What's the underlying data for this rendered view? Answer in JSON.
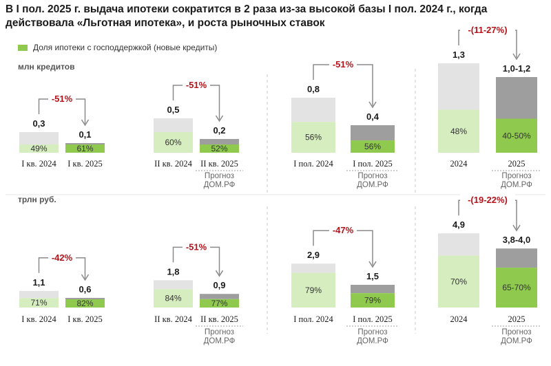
{
  "title": "В I пол. 2025 г. выдача ипотеки сократится в 2 раза из-за высокой базы I пол. 2024 г., когда действовала «Льготная ипотека», и роста рыночных ставок",
  "legend_label": "Доля ипотеки с господдержкой (новые кредиты)",
  "forecast_note": [
    "Прогноз",
    "ДОМ.РФ"
  ],
  "colors": {
    "total": "#e3e3e3",
    "total_forecast": "#9e9e9e",
    "share_light": "#d6edbf",
    "share_dark": "#8fca4f",
    "change": "#b3141b"
  },
  "chart_data": [
    {
      "unit": "млн кредитов",
      "type": "bar",
      "panels": [
        {
          "categories": [
            "I кв. 2024",
            "I кв. 2025"
          ],
          "values": [
            0.3,
            0.1
          ],
          "value_labels": [
            "0,3",
            "0,1"
          ],
          "share_values": [
            49,
            61
          ],
          "share_labels": [
            "49%",
            "61%"
          ],
          "change": "-51%",
          "forecast": false,
          "scale_max": 1.4
        },
        {
          "categories": [
            "II кв. 2024",
            "II кв. 2025"
          ],
          "values": [
            0.5,
            0.2
          ],
          "value_labels": [
            "0,5",
            "0,2"
          ],
          "share_values": [
            60,
            52
          ],
          "share_labels": [
            "60%",
            "52%"
          ],
          "change": "-51%",
          "forecast": true,
          "scale_max": 1.4
        },
        {
          "categories": [
            "I пол. 2024",
            "I пол. 2025"
          ],
          "values": [
            0.8,
            0.4
          ],
          "value_labels": [
            "0,8",
            "0,4"
          ],
          "share_values": [
            56,
            56
          ],
          "share_labels": [
            "56%",
            "56%"
          ],
          "change": "-51%",
          "forecast": true,
          "scale_max": 1.4
        },
        {
          "categories": [
            "2024",
            "2025"
          ],
          "values": [
            1.3,
            1.1
          ],
          "value_labels": [
            "1,3",
            "1,0-1,2"
          ],
          "share_values": [
            48,
            45
          ],
          "share_labels": [
            "48%",
            "40-50%"
          ],
          "change": "-(11-27%)",
          "forecast": true,
          "scale_max": 1.4
        }
      ]
    },
    {
      "unit": "трлн руб.",
      "type": "bar",
      "panels": [
        {
          "categories": [
            "I кв. 2024",
            "I кв. 2025"
          ],
          "values": [
            1.1,
            0.6
          ],
          "value_labels": [
            "1,1",
            "0,6"
          ],
          "share_values": [
            71,
            82
          ],
          "share_labels": [
            "71%",
            "82%"
          ],
          "change": "-42%",
          "forecast": false,
          "scale_max": 5.5
        },
        {
          "categories": [
            "II кв. 2024",
            "II кв. 2025"
          ],
          "values": [
            1.8,
            0.9
          ],
          "value_labels": [
            "1,8",
            "0,9"
          ],
          "share_values": [
            84,
            77
          ],
          "share_labels": [
            "84%",
            "77%"
          ],
          "change": "-51%",
          "forecast": true,
          "scale_max": 5.5
        },
        {
          "categories": [
            "I пол. 2024",
            "I пол. 2025"
          ],
          "values": [
            2.9,
            1.5
          ],
          "value_labels": [
            "2,9",
            "1,5"
          ],
          "share_values": [
            79,
            79
          ],
          "share_labels": [
            "79%",
            "79%"
          ],
          "change": "-47%",
          "forecast": true,
          "scale_max": 5.5
        },
        {
          "categories": [
            "2024",
            "2025"
          ],
          "values": [
            4.9,
            3.9
          ],
          "value_labels": [
            "4,9",
            "3,8-4,0"
          ],
          "share_values": [
            70,
            67.5
          ],
          "share_labels": [
            "70%",
            "65-70%"
          ],
          "change": "-(19-22%)",
          "forecast": true,
          "scale_max": 5.5
        }
      ]
    }
  ]
}
